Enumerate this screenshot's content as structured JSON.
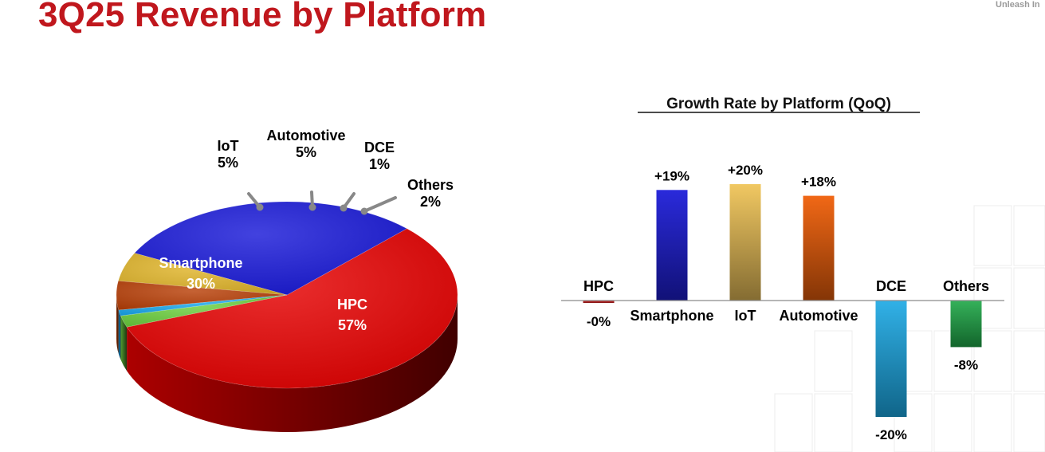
{
  "page": {
    "title": "3Q25 Revenue by Platform",
    "tagline": "Unleash In",
    "accent": "#c0171d"
  },
  "chart_data": [
    {
      "type": "pie",
      "title": "",
      "slices": [
        {
          "name": "HPC",
          "value": 57,
          "label": "57%",
          "color": "#e50000"
        },
        {
          "name": "Smartphone",
          "value": 30,
          "label": "30%",
          "color": "#1818d8"
        },
        {
          "name": "IoT",
          "value": 5,
          "label": "5%",
          "color": "#e0b52a"
        },
        {
          "name": "Automotive",
          "value": 5,
          "label": "5%",
          "color": "#b84008"
        },
        {
          "name": "DCE",
          "value": 1,
          "label": "1%",
          "color": "#19a8ee"
        },
        {
          "name": "Others",
          "value": 2,
          "label": "2%",
          "color": "#6ccf3e"
        }
      ],
      "legend": "none"
    },
    {
      "type": "bar",
      "title": "Growth Rate by Platform (QoQ)",
      "categories": [
        "HPC",
        "Smartphone",
        "IoT",
        "Automotive",
        "DCE",
        "Others"
      ],
      "values": [
        -0.3,
        19,
        20,
        18,
        -20,
        -8
      ],
      "value_labels": [
        "-0%",
        "+19%",
        "+20%",
        "+18%",
        "-20%",
        "-8%"
      ],
      "colors": [
        "#d21e1e",
        "#1f1fd9",
        "#f0c55a",
        "#f0600a",
        "#1aa8e4",
        "#1ea848"
      ],
      "ylim": [
        -20,
        20
      ],
      "grid": false,
      "legend": "none"
    }
  ]
}
